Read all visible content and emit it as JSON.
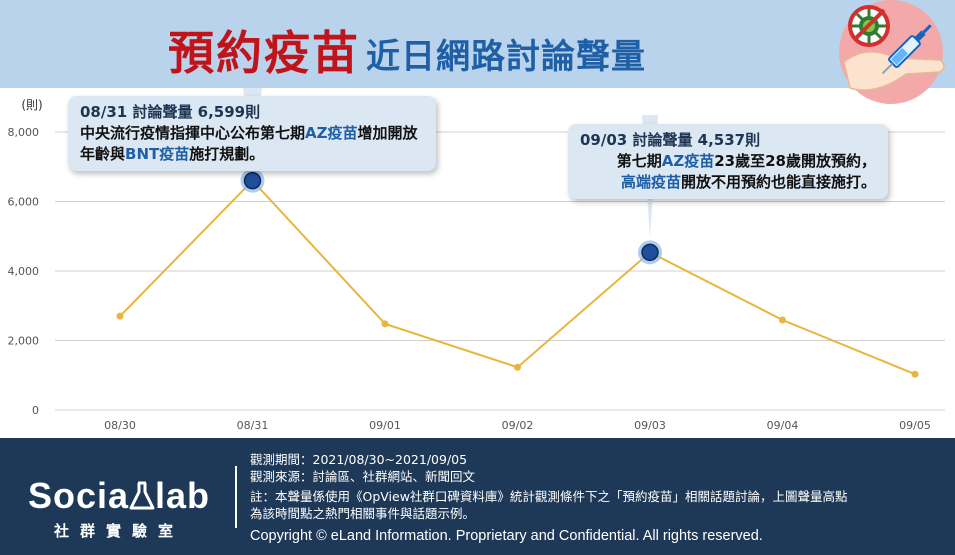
{
  "header": {
    "title_main": "預約疫苗",
    "title_sub": "近日網路討論聲量"
  },
  "chart_data": {
    "type": "line",
    "ylabel": "(則)",
    "categories": [
      "08/30",
      "08/31",
      "09/01",
      "09/02",
      "09/03",
      "09/04",
      "09/05"
    ],
    "values": [
      2700,
      6599,
      2480,
      1230,
      4537,
      2590,
      1030
    ],
    "y_ticks": [
      0,
      2000,
      4000,
      6000,
      8000
    ],
    "y_tick_labels": [
      "0",
      "2,000",
      "4,000",
      "6,000",
      "8,000"
    ],
    "ylim": [
      0,
      8000
    ],
    "highlight_indices": [
      1,
      4
    ],
    "line_color": "#e8b53e",
    "marker_color": "#1f4e9a",
    "grid": true
  },
  "callouts": [
    {
      "head": "08/31 討論聲量 6,599則",
      "body": [
        {
          "t": "中央流行疫情指揮中心公布第七期",
          "hl": false
        },
        {
          "t": "AZ疫苗",
          "hl": true
        },
        {
          "t": "增加開放年齡與",
          "hl": false
        },
        {
          "t": "BNT疫苗",
          "hl": true
        },
        {
          "t": "施打規劃。",
          "hl": false
        }
      ]
    },
    {
      "head": "09/03 討論聲量 4,537則",
      "line2": [
        {
          "t": "第七期",
          "hl": false
        },
        {
          "t": "AZ疫苗",
          "hl": true
        },
        {
          "t": "23歲至28歲開放預約，",
          "hl": false
        }
      ],
      "line3": [
        {
          "t": "高端疫苗",
          "hl": true
        },
        {
          "t": "開放不用預約也能直接施打。",
          "hl": false
        }
      ]
    }
  ],
  "footer": {
    "brand_name": "Socia",
    "brand_name2": "lab",
    "brand_sub": "社群實驗室",
    "period": "觀測期間：2021/08/30~2021/09/05",
    "source": "觀測來源：討論區、社群網站、新聞回文",
    "note1": "註：本聲量係使用《OpView社群口碑資料庫》統計觀測條件下之「預約疫苗」相關話題討論，上圖聲量高點",
    "note2": "為該時間點之熱門相關事件與話題示例。",
    "copyright": "Copyright © eLand Information. Proprietary and Confidential. All rights reserved."
  },
  "colors": {
    "header_bg": "#b9d3ec",
    "title_red": "#c0141b",
    "title_blue": "#1f5fa6",
    "footer_bg": "#1e3958",
    "callout_bg": "#dbe7f3"
  }
}
